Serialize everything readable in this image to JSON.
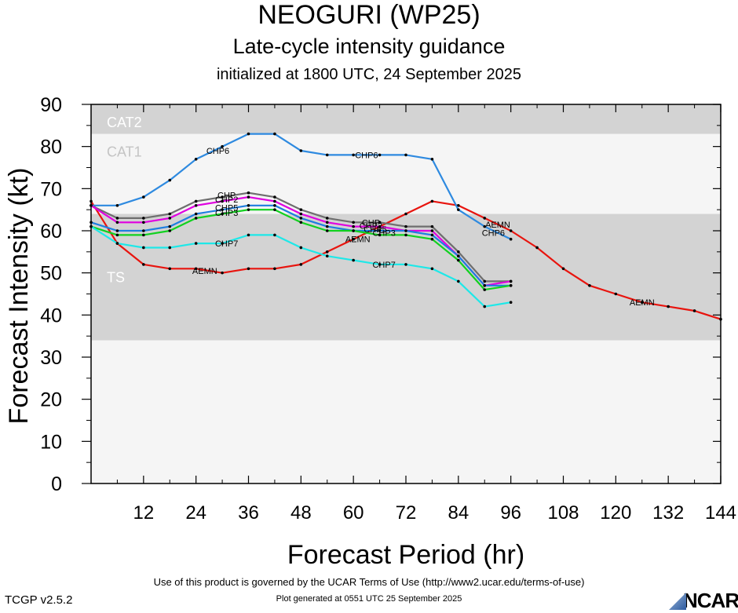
{
  "header": {
    "title": "NEOGURI (WP25)",
    "subtitle": "Late-cycle intensity guidance",
    "init": "initialized at 1800 UTC, 24 September 2025"
  },
  "footer": {
    "terms": "Use of this product is governed by the UCAR Terms of Use (http://www2.ucar.edu/terms-of-use)",
    "generated": "Plot generated at 0551 UTC   25 September 2025",
    "version": "TCGP v2.5.2",
    "logo": "NCAR"
  },
  "chart_data": {
    "type": "line",
    "xlabel": "Forecast Period (hr)",
    "ylabel": "Forecast Intensity (kt)",
    "xlim": [
      0,
      144
    ],
    "ylim": [
      0,
      90
    ],
    "xticks": [
      12,
      24,
      36,
      48,
      60,
      72,
      84,
      96,
      108,
      120,
      132,
      144
    ],
    "yticks": [
      0,
      10,
      20,
      30,
      40,
      50,
      60,
      70,
      80,
      90
    ],
    "grid": false,
    "bands": [
      {
        "label": "TS",
        "from": 34,
        "to": 64,
        "color": "#d3d3d3"
      },
      {
        "label": "CAT1",
        "from": 64,
        "to": 83,
        "color": "#f5f5f5"
      },
      {
        "label": "CAT2",
        "from": 83,
        "to": 90,
        "color": "#d3d3d3"
      }
    ],
    "series": [
      {
        "name": "AEMN",
        "color": "#e8140e",
        "x": [
          0,
          6,
          12,
          18,
          24,
          30,
          36,
          42,
          48,
          54,
          60,
          66,
          72,
          78,
          84,
          90,
          96,
          102,
          108,
          114,
          120,
          126,
          132,
          138,
          144
        ],
        "values": [
          67,
          57,
          52,
          51,
          51,
          50,
          51,
          51,
          52,
          55,
          58,
          61,
          64,
          67,
          66,
          63,
          60,
          56,
          51,
          47,
          45,
          43,
          42,
          41,
          39
        ],
        "labels": [
          {
            "x": 26,
            "y": 50.5
          },
          {
            "x": 61,
            "y": 58
          },
          {
            "x": 93,
            "y": 61.5
          },
          {
            "x": 126,
            "y": 43
          }
        ]
      },
      {
        "name": "CHP6",
        "color": "#2e8ae0",
        "x": [
          0,
          6,
          12,
          18,
          24,
          30,
          36,
          42,
          48,
          54,
          60,
          66,
          72,
          78,
          84,
          90,
          96
        ],
        "values": [
          66,
          66,
          68,
          72,
          77,
          80,
          83,
          83,
          79,
          78,
          78,
          78,
          78,
          77,
          65,
          61,
          58
        ],
        "labels": [
          {
            "x": 29,
            "y": 79
          },
          {
            "x": 63,
            "y": 78
          },
          {
            "x": 92,
            "y": 59.5
          }
        ]
      },
      {
        "name": "CHP",
        "color": "#6e6e6e",
        "x": [
          0,
          6,
          12,
          18,
          24,
          30,
          36,
          42,
          48,
          54,
          60,
          66,
          72,
          78,
          84,
          90,
          96
        ],
        "values": [
          66,
          63,
          63,
          64,
          67,
          68,
          69,
          68,
          65,
          63,
          62,
          62,
          61,
          61,
          55,
          48,
          48
        ],
        "labels": [
          {
            "x": 31,
            "y": 68.5
          },
          {
            "x": 64,
            "y": 62
          }
        ]
      },
      {
        "name": "CHP2",
        "color": "#e000e0",
        "x": [
          0,
          6,
          12,
          18,
          24,
          30,
          36,
          42,
          48,
          54,
          60,
          66,
          72,
          78,
          84,
          90,
          96
        ],
        "values": [
          66,
          62,
          62,
          63,
          66,
          67,
          68,
          67,
          64,
          62,
          61,
          61,
          60,
          60,
          54,
          47,
          48
        ],
        "labels": [
          {
            "x": 31,
            "y": 67.5
          },
          {
            "x": 64,
            "y": 61.2
          }
        ]
      },
      {
        "name": "CHP5",
        "color": "#1e7ee0",
        "x": [
          0,
          6,
          12,
          18,
          24,
          30,
          36,
          42,
          48,
          54,
          60,
          66,
          72,
          78,
          84,
          90,
          96
        ],
        "values": [
          62,
          60,
          60,
          61,
          64,
          65,
          66,
          66,
          63,
          61,
          60,
          60,
          60,
          59,
          54,
          47,
          47
        ],
        "labels": [
          {
            "x": 31,
            "y": 65.5
          },
          {
            "x": 65,
            "y": 60.4
          }
        ]
      },
      {
        "name": "CHP3",
        "color": "#11d11f",
        "x": [
          0,
          6,
          12,
          18,
          24,
          30,
          36,
          42,
          48,
          54,
          60,
          66,
          72,
          78,
          84,
          90,
          96
        ],
        "values": [
          61,
          59,
          59,
          60,
          63,
          64,
          65,
          65,
          62,
          60,
          60,
          59,
          59,
          58,
          53,
          46,
          47
        ],
        "labels": [
          {
            "x": 31,
            "y": 64.3
          },
          {
            "x": 67,
            "y": 59.5
          }
        ]
      },
      {
        "name": "CHP7",
        "color": "#1ee8e8",
        "x": [
          0,
          6,
          12,
          18,
          24,
          30,
          36,
          42,
          48,
          54,
          60,
          66,
          72,
          78,
          84,
          90,
          96
        ],
        "values": [
          61,
          57,
          56,
          56,
          57,
          57,
          59,
          59,
          56,
          54,
          53,
          52,
          52,
          51,
          48,
          42,
          43
        ],
        "labels": [
          {
            "x": 31,
            "y": 57
          },
          {
            "x": 67,
            "y": 52
          }
        ]
      }
    ]
  }
}
